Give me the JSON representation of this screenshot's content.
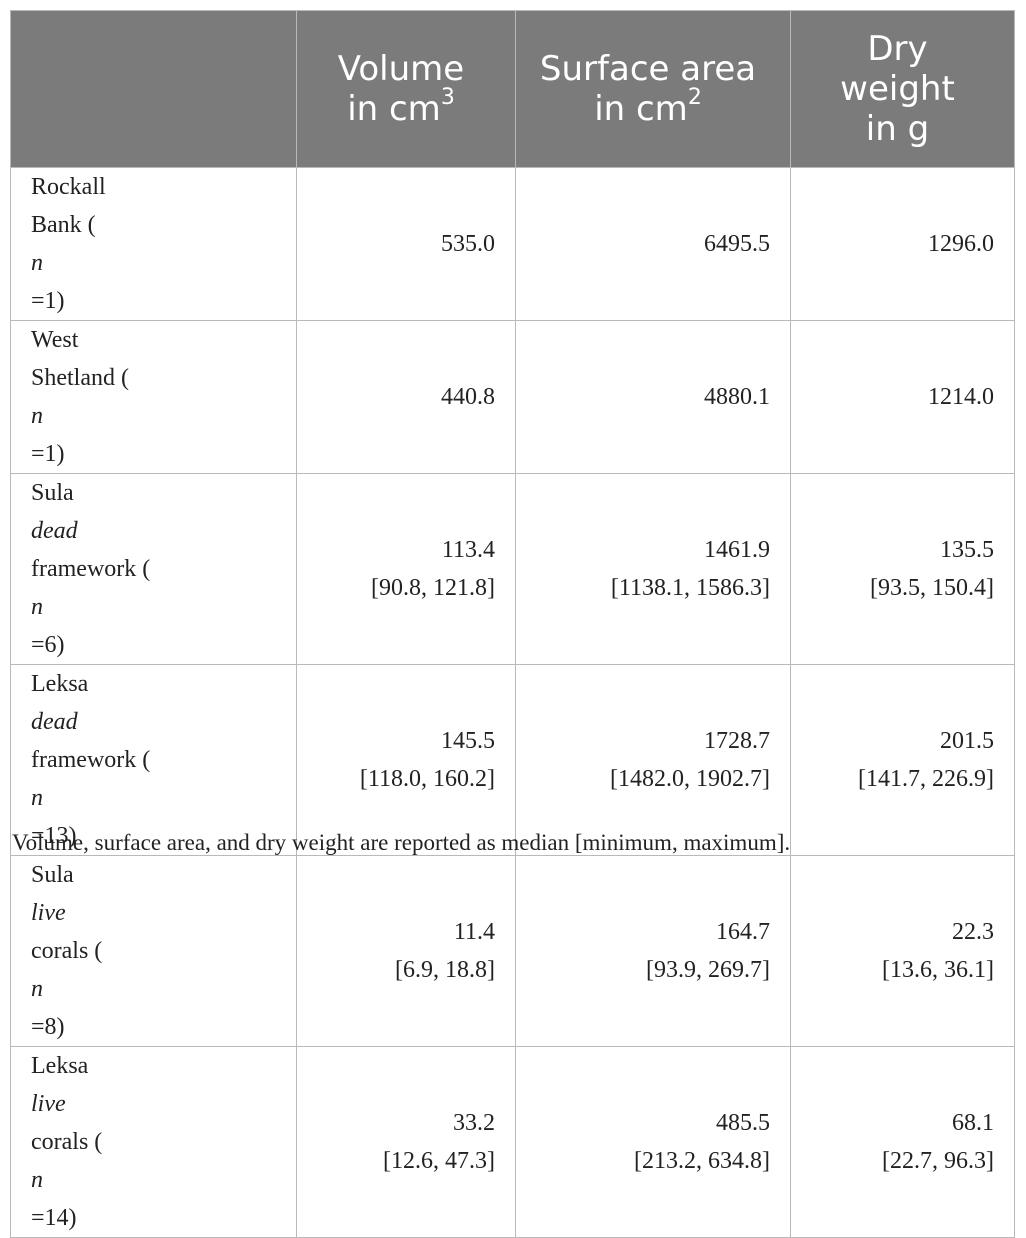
{
  "header": {
    "col1": "",
    "volume": {
      "l1": "Volume",
      "l2": "in cm",
      "sup": "3"
    },
    "surface": {
      "l1": "Surface area",
      "l2": "in cm",
      "sup": "2"
    },
    "dry": {
      "l1": "Dry",
      "l2": "weight",
      "l3": "in g"
    }
  },
  "rows": [
    {
      "a": "Rockall",
      "b_pre": "Bank (",
      "b_it": "n",
      "b_post": "=1)",
      "b_mid": "",
      "vol": "535.0",
      "vol_r": "",
      "sa": "6495.5",
      "sa_r": "",
      "dw": "1296.0",
      "dw_r": ""
    },
    {
      "a": "West",
      "b_pre": "Shetland (",
      "b_it": "n",
      "b_post": "=1)",
      "vol": "440.8",
      "vol_r": "",
      "sa": "4880.1",
      "sa_r": "",
      "dw": "1214.0",
      "dw_r": ""
    },
    {
      "a_pre": "Sula ",
      "a_it": "dead",
      "b_pre": "framework (",
      "b_it": "n",
      "b_post": "=6)",
      "vol": "113.4",
      "vol_r": "[90.8, 121.8]",
      "sa": "1461.9",
      "sa_r": "[1138.1, 1586.3]",
      "dw": "135.5",
      "dw_r": "[93.5, 150.4]"
    },
    {
      "a_pre": "Leksa ",
      "a_it": "dead",
      "b_pre": "framework (",
      "b_it": "n",
      "b_post": "=13)",
      "vol": "145.5",
      "vol_r": "[118.0, 160.2]",
      "sa": "1728.7",
      "sa_r": "[1482.0, 1902.7]",
      "dw": "201.5",
      "dw_r": "[141.7, 226.9]"
    },
    {
      "a_pre": "Sula ",
      "a_it": "live",
      "b_pre": "corals (",
      "b_it": "n",
      "b_post": "=8)",
      "vol": "11.4",
      "vol_r": "[6.9, 18.8]",
      "sa": "164.7",
      "sa_r": "[93.9, 269.7]",
      "dw": "22.3",
      "dw_r": "[13.6, 36.1]"
    },
    {
      "a_pre": "Leksa ",
      "a_it": "live",
      "b_pre": "corals (",
      "b_it": "n",
      "b_post": "=14)",
      "vol": "33.2",
      "vol_r": "[12.6, 47.3]",
      "sa": "485.5",
      "sa_r": "[213.2, 634.8]",
      "dw": "68.1",
      "dw_r": "[22.7, 96.3]"
    }
  ],
  "footnote": "Volume, surface area, and dry weight are reported as median [minimum, maximum]."
}
